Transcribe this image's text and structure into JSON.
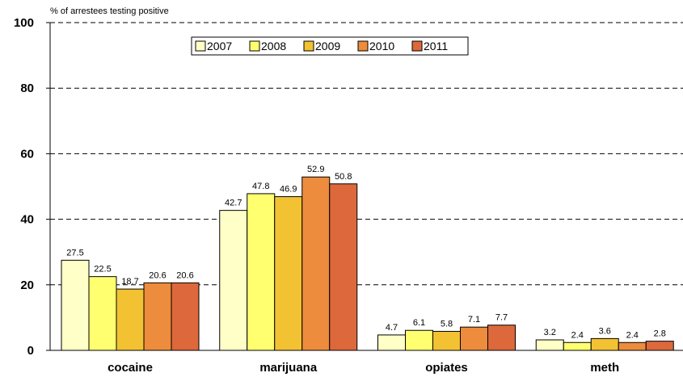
{
  "chart_data": {
    "type": "bar",
    "ylabel": "% of arrestees testing positive",
    "ylim": [
      0,
      100
    ],
    "yticks": [
      0,
      20,
      40,
      60,
      80,
      100
    ],
    "grid": "horizontal dashed",
    "legend_position": "top-center",
    "categories": [
      "cocaine",
      "marijuana",
      "opiates",
      "meth"
    ],
    "series": [
      {
        "name": "2007",
        "color": "#FFFFC8",
        "values": [
          27.5,
          42.7,
          4.7,
          3.2
        ]
      },
      {
        "name": "2008",
        "color": "#FFFF70",
        "values": [
          22.5,
          47.8,
          6.1,
          2.4
        ]
      },
      {
        "name": "2009",
        "color": "#F2C232",
        "values": [
          18.7,
          46.9,
          5.8,
          3.6
        ]
      },
      {
        "name": "2010",
        "color": "#EC8C3C",
        "values": [
          20.6,
          52.9,
          7.1,
          2.4
        ]
      },
      {
        "name": "2011",
        "color": "#DC683C",
        "values": [
          20.6,
          50.8,
          7.7,
          2.8
        ]
      }
    ]
  }
}
